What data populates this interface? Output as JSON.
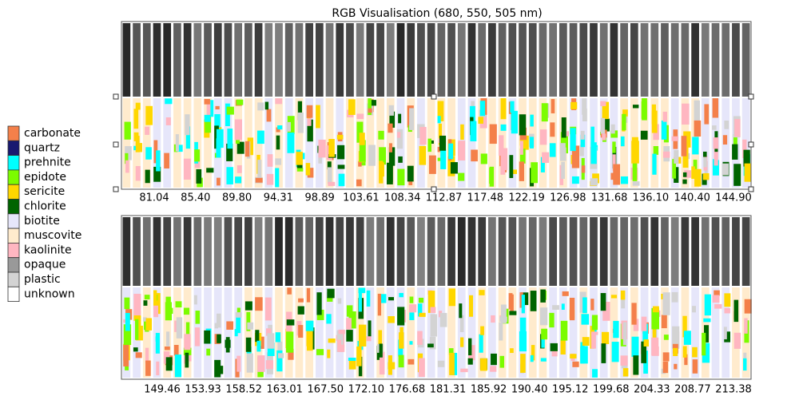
{
  "title": "RGB Visualisation (680, 550, 505 nm)",
  "legend": [
    {
      "label": "carbonate",
      "color": "#f4804a"
    },
    {
      "label": "quartz",
      "color": "#191970"
    },
    {
      "label": "prehnite",
      "color": "#00ffff"
    },
    {
      "label": "epidote",
      "color": "#7cfc00"
    },
    {
      "label": "sericite",
      "color": "#ffd700"
    },
    {
      "label": "chlorite",
      "color": "#006400"
    },
    {
      "label": "biotite",
      "color": "#e6e6fa"
    },
    {
      "label": "muscovite",
      "color": "#ffebcd"
    },
    {
      "label": "kaolinite",
      "color": "#ffb6c1"
    },
    {
      "label": "opaque",
      "color": "#999999"
    },
    {
      "label": "plastic",
      "color": "#d3d3d3"
    },
    {
      "label": "unknown",
      "color": "#ffffff"
    }
  ],
  "panels": [
    {
      "depth_labels": [
        "81.04",
        "85.40",
        "89.80",
        "94.31",
        "98.89",
        "103.61",
        "108.34",
        "112.87",
        "117.48",
        "122.19",
        "126.98",
        "131.68",
        "136.10",
        "140.40",
        "144.90"
      ]
    },
    {
      "depth_labels": [
        "149.46",
        "153.93",
        "158.52",
        "163.01",
        "167.50",
        "172.10",
        "176.68",
        "181.31",
        "185.92",
        "190.40",
        "195.12",
        "199.68",
        "204.33",
        "208.77",
        "213.38"
      ]
    }
  ]
}
